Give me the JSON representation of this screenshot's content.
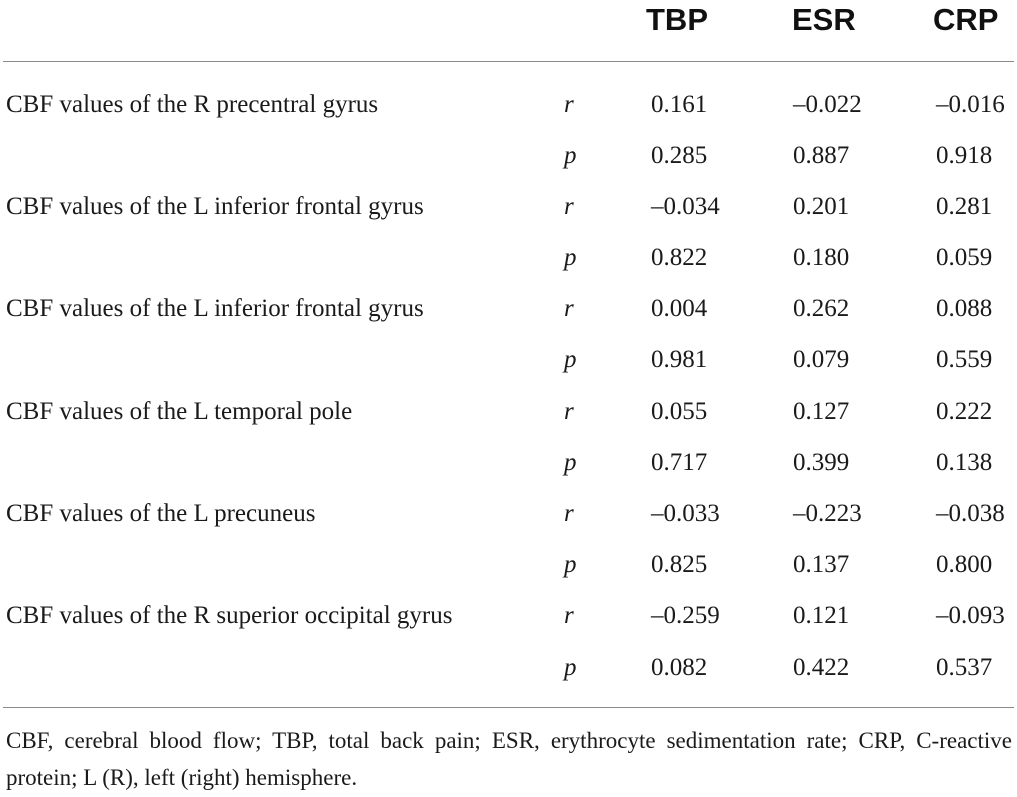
{
  "table": {
    "columns": [
      "TBP",
      "ESR",
      "CRP"
    ],
    "rows": [
      {
        "label": "CBF values of the R precentral gyrus",
        "stat": "r",
        "tbp": "0.161",
        "esr": "–0.022",
        "crp": "–0.016"
      },
      {
        "label": "",
        "stat": "p",
        "tbp": "0.285",
        "esr": "0.887",
        "crp": "0.918"
      },
      {
        "label": "CBF values of the L inferior frontal gyrus",
        "stat": "r",
        "tbp": "–0.034",
        "esr": "0.201",
        "crp": "0.281"
      },
      {
        "label": "",
        "stat": "p",
        "tbp": "0.822",
        "esr": "0.180",
        "crp": "0.059"
      },
      {
        "label": "CBF values of the L inferior frontal gyrus",
        "stat": "r",
        "tbp": "0.004",
        "esr": "0.262",
        "crp": "0.088"
      },
      {
        "label": "",
        "stat": "p",
        "tbp": "0.981",
        "esr": "0.079",
        "crp": "0.559"
      },
      {
        "label": "CBF values of the L temporal pole",
        "stat": "r",
        "tbp": "0.055",
        "esr": "0.127",
        "crp": "0.222"
      },
      {
        "label": "",
        "stat": "p",
        "tbp": "0.717",
        "esr": "0.399",
        "crp": "0.138"
      },
      {
        "label": "CBF values of the L precuneus",
        "stat": "r",
        "tbp": "–0.033",
        "esr": "–0.223",
        "crp": "–0.038"
      },
      {
        "label": "",
        "stat": "p",
        "tbp": "0.825",
        "esr": "0.137",
        "crp": "0.800"
      },
      {
        "label": "CBF values of the R superior occipital gyrus",
        "stat": "r",
        "tbp": "–0.259",
        "esr": "0.121",
        "crp": "–0.093"
      },
      {
        "label": "",
        "stat": "p",
        "tbp": "0.082",
        "esr": "0.422",
        "crp": "0.537"
      }
    ]
  },
  "footnote": "CBF, cerebral blood flow; TBP, total back pain; ESR, erythrocyte sedimentation rate; CRP, C-reactive protein; L (R), left (right) hemisphere."
}
